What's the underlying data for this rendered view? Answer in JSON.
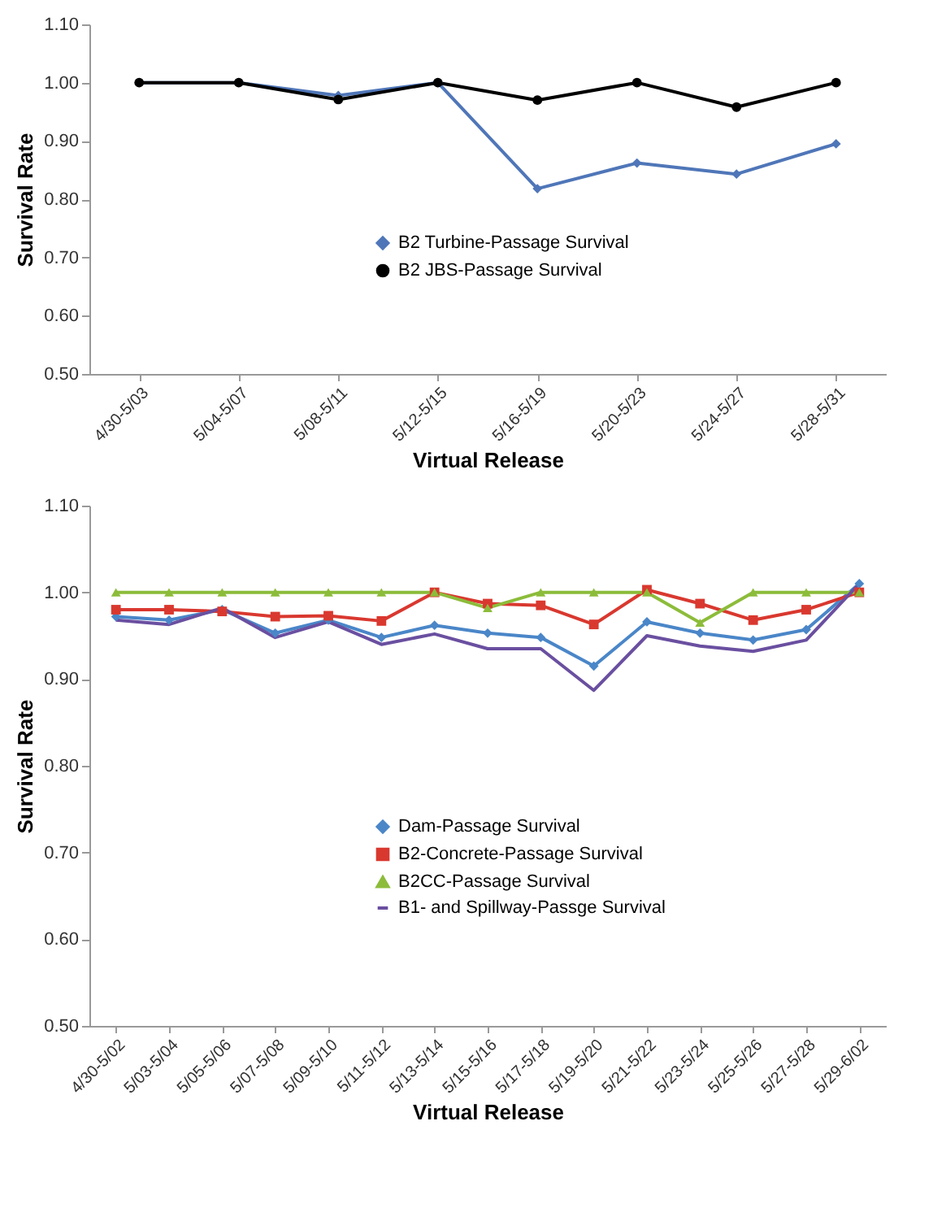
{
  "chart_data": [
    {
      "type": "line",
      "xlabel": "Virtual Release",
      "ylabel": "Survival Rate",
      "categories": [
        "4/30-5/03",
        "5/04-5/07",
        "5/08-5/11",
        "5/12-5/15",
        "5/16-5/19",
        "5/20-5/23",
        "5/24-5/27",
        "5/28-5/31"
      ],
      "series": [
        {
          "name": "B2 Turbine-Passage Survival",
          "color": "#4f76b8",
          "marker": "diamond",
          "values": [
            1.0,
            1.0,
            0.978,
            1.0,
            0.818,
            0.862,
            0.843,
            0.895
          ]
        },
        {
          "name": "B2 JBS-Passage Survival",
          "color": "#000000",
          "marker": "circle",
          "values": [
            1.0,
            1.0,
            0.971,
            1.0,
            0.97,
            1.0,
            0.958,
            1.0
          ]
        }
      ],
      "ylim": [
        0.5,
        1.1
      ],
      "yticks": [
        {
          "value": 0.5,
          "label": "0.50"
        },
        {
          "value": 0.6,
          "label": "0.60"
        },
        {
          "value": 0.7,
          "label": "0.70"
        },
        {
          "value": 0.8,
          "label": "0.80"
        },
        {
          "value": 0.9,
          "label": "0.90"
        },
        {
          "value": 1.0,
          "label": "1.00"
        },
        {
          "value": 1.1,
          "label": "1.10"
        }
      ],
      "grid": false,
      "legend": "bottom"
    },
    {
      "type": "line",
      "xlabel": "Virtual Release",
      "ylabel": "Survival Rate",
      "categories": [
        "4/30-5/02",
        "5/03-5/04",
        "5/05-5/06",
        "5/07-5/08",
        "5/09-5/10",
        "5/11-5/12",
        "5/13-5/14",
        "5/15-5/16",
        "5/17-5/18",
        "5/19-5/20",
        "5/21-5/22",
        "5/23-5/24",
        "5/25-5/26",
        "5/27-5/28",
        "5/29-6/02"
      ],
      "series": [
        {
          "name": "Dam-Passage Survival",
          "color": "#4a86c8",
          "marker": "diamond",
          "values": [
            0.972,
            0.968,
            0.98,
            0.953,
            0.968,
            0.948,
            0.962,
            0.953,
            0.948,
            0.915,
            0.966,
            0.953,
            0.945,
            0.957,
            1.01
          ]
        },
        {
          "name": "B2-Concrete-Passage Survival",
          "color": "#d9382f",
          "marker": "square",
          "values": [
            0.98,
            0.98,
            0.978,
            0.972,
            0.973,
            0.967,
            1.0,
            0.987,
            0.985,
            0.963,
            1.003,
            0.987,
            0.968,
            0.98,
            1.0
          ]
        },
        {
          "name": "B2CC-Passage Survival",
          "color": "#8cbc3a",
          "marker": "triangle",
          "values": [
            1.0,
            1.0,
            1.0,
            1.0,
            1.0,
            1.0,
            1.0,
            0.982,
            1.0,
            1.0,
            1.0,
            0.965,
            1.0,
            1.0,
            1.0
          ]
        },
        {
          "name": "B1- and Spillway-Passge Survival",
          "color": "#6a4fa0",
          "marker": "none",
          "values": [
            0.968,
            0.963,
            0.982,
            0.948,
            0.966,
            0.94,
            0.952,
            0.935,
            0.935,
            0.887,
            0.95,
            0.938,
            0.932,
            0.945,
            1.01
          ]
        }
      ],
      "ylim": [
        0.5,
        1.1
      ],
      "yticks": [
        {
          "value": 0.5,
          "label": "0.50"
        },
        {
          "value": 0.6,
          "label": "0.60"
        },
        {
          "value": 0.7,
          "label": "0.70"
        },
        {
          "value": 0.8,
          "label": "0.80"
        },
        {
          "value": 0.9,
          "label": "0.90"
        },
        {
          "value": 1.0,
          "label": "1.00"
        },
        {
          "value": 1.1,
          "label": "1.10"
        }
      ],
      "grid": false,
      "legend": "bottom"
    }
  ]
}
